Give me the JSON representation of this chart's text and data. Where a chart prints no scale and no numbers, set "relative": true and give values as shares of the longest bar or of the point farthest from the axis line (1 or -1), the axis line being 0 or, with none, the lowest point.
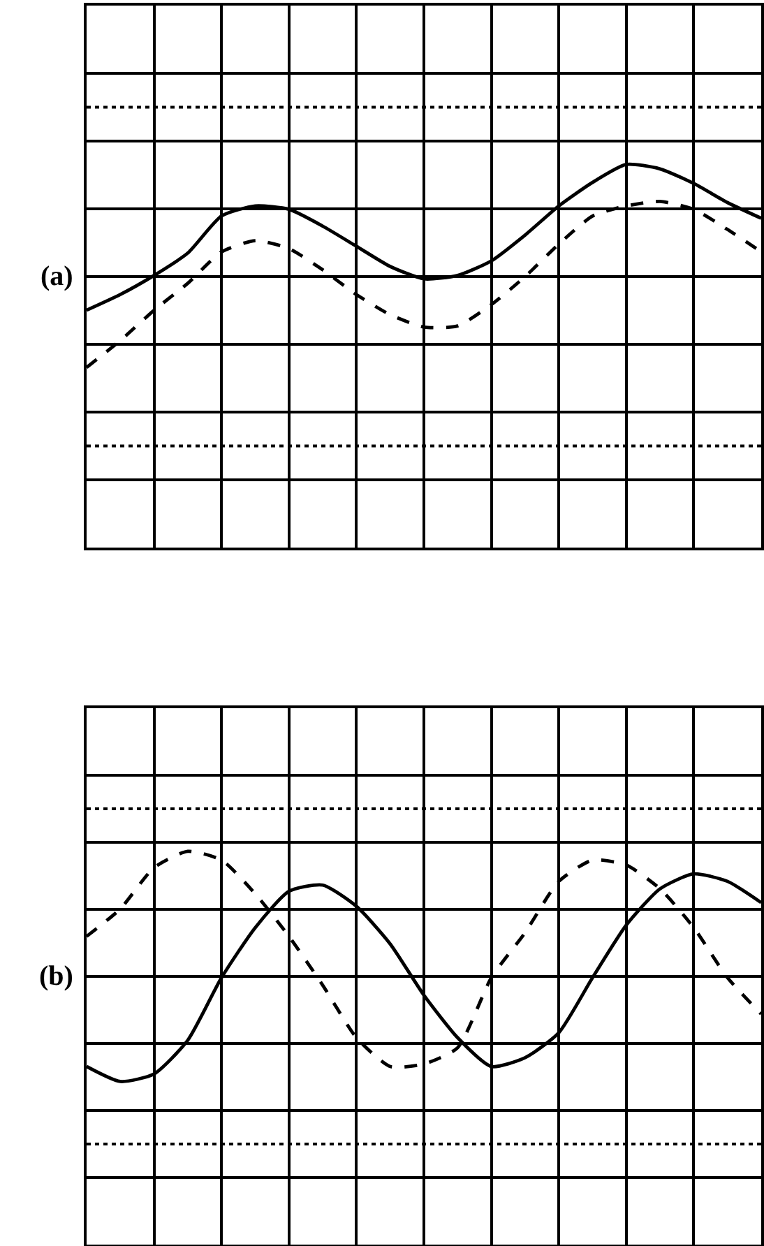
{
  "chart_data": [
    {
      "type": "line",
      "title": "(a)",
      "relative": true,
      "grid": true,
      "tick_labels": false,
      "categories": [
        null,
        null,
        null,
        null,
        null,
        null,
        null,
        null,
        null,
        null,
        null,
        null,
        null,
        null,
        null,
        null,
        null,
        null,
        null,
        null,
        null
      ],
      "series": [
        {
          "color": "#000000",
          "line_style": "solid",
          "values": [
            -0.3,
            -0.16,
            0.01,
            0.21,
            0.54,
            0.63,
            0.6,
            0.45,
            0.27,
            0.09,
            -0.02,
            0.01,
            0.14,
            0.37,
            0.63,
            0.84,
            1.0,
            0.96,
            0.83,
            0.66,
            0.52
          ]
        },
        {
          "color": "#000000",
          "line_style": "dashed",
          "values": [
            -0.81,
            -0.57,
            -0.3,
            -0.06,
            0.22,
            0.32,
            0.25,
            0.06,
            -0.16,
            -0.34,
            -0.45,
            -0.44,
            -0.25,
            0,
            0.29,
            0.54,
            0.63,
            0.67,
            0.6,
            0.42,
            0.22
          ]
        }
      ],
      "ref_lines": [
        {
          "axis": "y",
          "value": 1.51,
          "line_style": "dotted",
          "color": "#000000"
        },
        {
          "axis": "y",
          "value": -1.51,
          "line_style": "dotted",
          "color": "#000000"
        }
      ]
    },
    {
      "type": "line",
      "title": "(b)",
      "relative": true,
      "grid": true,
      "tick_labels": false,
      "categories": [
        null,
        null,
        null,
        null,
        null,
        null,
        null,
        null,
        null,
        null,
        null,
        null,
        null,
        null,
        null,
        null,
        null,
        null,
        null,
        null,
        null
      ],
      "series": [
        {
          "color": "#000000",
          "line_style": "solid",
          "values": [
            -0.72,
            -0.84,
            -0.78,
            -0.51,
            -0.01,
            0.39,
            0.68,
            0.73,
            0.56,
            0.26,
            -0.15,
            -0.49,
            -0.72,
            -0.65,
            -0.45,
            -0.01,
            0.41,
            0.7,
            0.82,
            0.76,
            0.59
          ]
        },
        {
          "color": "#000000",
          "line_style": "dashed",
          "values": [
            0.32,
            0.54,
            0.87,
            1.0,
            0.93,
            0.66,
            0.32,
            -0.07,
            -0.49,
            -0.72,
            -0.7,
            -0.57,
            -0.01,
            0.35,
            0.76,
            0.93,
            0.89,
            0.7,
            0.39,
            -0.01,
            -0.3
          ]
        }
      ],
      "ref_lines": [
        {
          "axis": "y",
          "value": 1.34,
          "line_style": "dotted",
          "color": "#000000"
        },
        {
          "axis": "y",
          "value": -1.34,
          "line_style": "dotted",
          "color": "#000000"
        }
      ]
    }
  ]
}
